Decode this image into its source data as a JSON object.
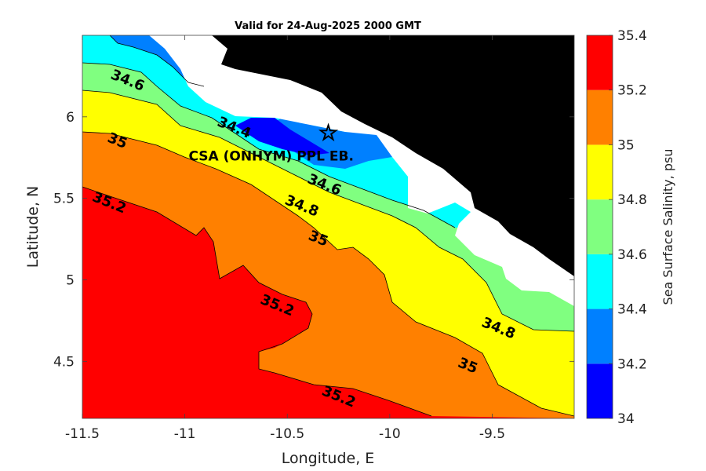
{
  "title": "Valid for 24-Aug-2025 2000 GMT",
  "x_axis": {
    "label": "Longitude, E",
    "ticks": [
      -11.5,
      -11,
      -10.5,
      -10,
      -9.5
    ],
    "tick_labels": [
      "-11.5",
      "-11",
      "-10.5",
      "-10",
      "-9.5"
    ],
    "range": [
      -11.5,
      -9.1
    ]
  },
  "y_axis": {
    "label": "Latitude, N",
    "ticks": [
      4.5,
      5,
      5.5,
      6
    ],
    "tick_labels": [
      "4.5",
      "5",
      "5.5",
      "6"
    ],
    "range": [
      4.15,
      6.5
    ]
  },
  "colorbar": {
    "label": "Sea Surface Salinity, psu",
    "levels": [
      34,
      34.2,
      34.4,
      34.6,
      34.8,
      35,
      35.2,
      35.4
    ],
    "level_labels": [
      "34",
      "34.2",
      "34.4",
      "34.6",
      "34.8",
      "35",
      "35.2",
      "35.4"
    ],
    "colors": [
      "#0000ff",
      "#0080ff",
      "#00ffff",
      "#80ff80",
      "#ffff00",
      "#ff8000",
      "#ff0000"
    ]
  },
  "land_color": "#000000",
  "nodata_color": "#ffffff",
  "contour_labels": [
    {
      "text": "34.6",
      "lon": -11.28,
      "lat": 6.22
    },
    {
      "text": "34.4",
      "lon": -10.76,
      "lat": 5.93
    },
    {
      "text": "34.6",
      "lon": -10.32,
      "lat": 5.58
    },
    {
      "text": "34.8",
      "lon": -10.43,
      "lat": 5.45
    },
    {
      "text": "35",
      "lon": -10.35,
      "lat": 5.25
    },
    {
      "text": "35",
      "lon": -11.33,
      "lat": 5.85
    },
    {
      "text": "35.2",
      "lon": -11.37,
      "lat": 5.47
    },
    {
      "text": "35.2",
      "lon": -10.55,
      "lat": 4.84
    },
    {
      "text": "35.2",
      "lon": -10.25,
      "lat": 4.28
    },
    {
      "text": "34.8",
      "lon": -9.47,
      "lat": 4.7
    },
    {
      "text": "35",
      "lon": -9.62,
      "lat": 4.47
    }
  ],
  "site": {
    "label": "CSA (ONHYM) PPL EB.",
    "marker_icon": "star-icon",
    "lon": -10.3,
    "lat": 5.9
  }
}
